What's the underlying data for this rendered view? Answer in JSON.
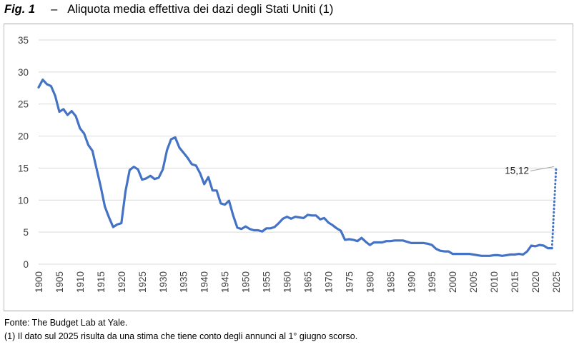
{
  "header": {
    "fig_label": "Fig. 1",
    "dash": "–",
    "title": "Aliquota media effettiva dei dazi degli Stati Uniti (1)"
  },
  "notes": {
    "source": "Fonte: The Budget Lab at Yale.",
    "footnote": "(1) Il dato sul 2025 risulta da una stima che tiene conto degli annunci al 1° giugno scorso."
  },
  "colors": {
    "series": "#4472c4",
    "grid": "#d9d9d9",
    "axis_text": "#404040"
  },
  "chart_data": {
    "type": "line",
    "title": "Aliquota media effettiva dei dazi degli Stati Uniti (1)",
    "xlabel": "",
    "ylabel": "",
    "ylim": [
      0,
      35
    ],
    "y_ticks": [
      0,
      5,
      10,
      15,
      20,
      25,
      30,
      35
    ],
    "xlim": [
      1900,
      2025
    ],
    "x_ticks": [
      1900,
      1905,
      1910,
      1915,
      1920,
      1925,
      1930,
      1935,
      1940,
      1945,
      1950,
      1955,
      1960,
      1965,
      1970,
      1975,
      1980,
      1985,
      1990,
      1995,
      2000,
      2005,
      2010,
      2015,
      2020,
      2025
    ],
    "grid": true,
    "legend": "none",
    "series": [
      {
        "style": "solid",
        "x": [
          1900,
          1901,
          1902,
          1903,
          1904,
          1905,
          1906,
          1907,
          1908,
          1909,
          1910,
          1911,
          1912,
          1913,
          1914,
          1915,
          1916,
          1917,
          1918,
          1919,
          1920,
          1921,
          1922,
          1923,
          1924,
          1925,
          1926,
          1927,
          1928,
          1929,
          1930,
          1931,
          1932,
          1933,
          1934,
          1935,
          1936,
          1937,
          1938,
          1939,
          1940,
          1941,
          1942,
          1943,
          1944,
          1945,
          1946,
          1947,
          1948,
          1949,
          1950,
          1951,
          1952,
          1953,
          1954,
          1955,
          1956,
          1957,
          1958,
          1959,
          1960,
          1961,
          1962,
          1963,
          1964,
          1965,
          1966,
          1967,
          1968,
          1969,
          1970,
          1971,
          1972,
          1973,
          1974,
          1975,
          1976,
          1977,
          1978,
          1979,
          1980,
          1981,
          1982,
          1983,
          1984,
          1985,
          1986,
          1987,
          1988,
          1989,
          1990,
          1991,
          1992,
          1993,
          1994,
          1995,
          1996,
          1997,
          1998,
          1999,
          2000,
          2001,
          2002,
          2003,
          2004,
          2005,
          2006,
          2007,
          2008,
          2009,
          2010,
          2011,
          2012,
          2013,
          2014,
          2015,
          2016,
          2017,
          2018,
          2019,
          2020,
          2021,
          2022,
          2023,
          2024
        ],
        "values": [
          27.6,
          28.8,
          28.1,
          27.8,
          26.3,
          23.8,
          24.2,
          23.3,
          23.9,
          23.1,
          21.2,
          20.4,
          18.6,
          17.7,
          14.9,
          12.1,
          9.0,
          7.3,
          5.8,
          6.2,
          6.4,
          11.4,
          14.7,
          15.2,
          14.8,
          13.2,
          13.4,
          13.8,
          13.3,
          13.5,
          14.8,
          17.8,
          19.5,
          19.8,
          18.2,
          17.4,
          16.6,
          15.6,
          15.4,
          14.2,
          12.5,
          13.6,
          11.5,
          11.5,
          9.5,
          9.3,
          9.9,
          7.6,
          5.7,
          5.5,
          5.9,
          5.5,
          5.3,
          5.3,
          5.1,
          5.6,
          5.6,
          5.8,
          6.4,
          7.1,
          7.4,
          7.1,
          7.4,
          7.3,
          7.2,
          7.7,
          7.6,
          7.6,
          7.0,
          7.2,
          6.5,
          6.1,
          5.6,
          5.2,
          3.8,
          3.9,
          3.8,
          3.6,
          4.1,
          3.5,
          3.0,
          3.4,
          3.4,
          3.4,
          3.6,
          3.6,
          3.7,
          3.7,
          3.7,
          3.5,
          3.3,
          3.3,
          3.3,
          3.3,
          3.2,
          3.0,
          2.4,
          2.1,
          2.0,
          2.0,
          1.6,
          1.6,
          1.6,
          1.6,
          1.6,
          1.5,
          1.4,
          1.3,
          1.3,
          1.3,
          1.4,
          1.4,
          1.3,
          1.4,
          1.5,
          1.5,
          1.6,
          1.5,
          2.0,
          2.9,
          2.8,
          3.0,
          2.9,
          2.5,
          2.5
        ]
      },
      {
        "style": "dotted",
        "x": [
          2024,
          2025
        ],
        "values": [
          2.5,
          15.12
        ]
      }
    ],
    "annotations": [
      {
        "text": "15,12",
        "x": 2025,
        "y": 15.12
      }
    ]
  }
}
